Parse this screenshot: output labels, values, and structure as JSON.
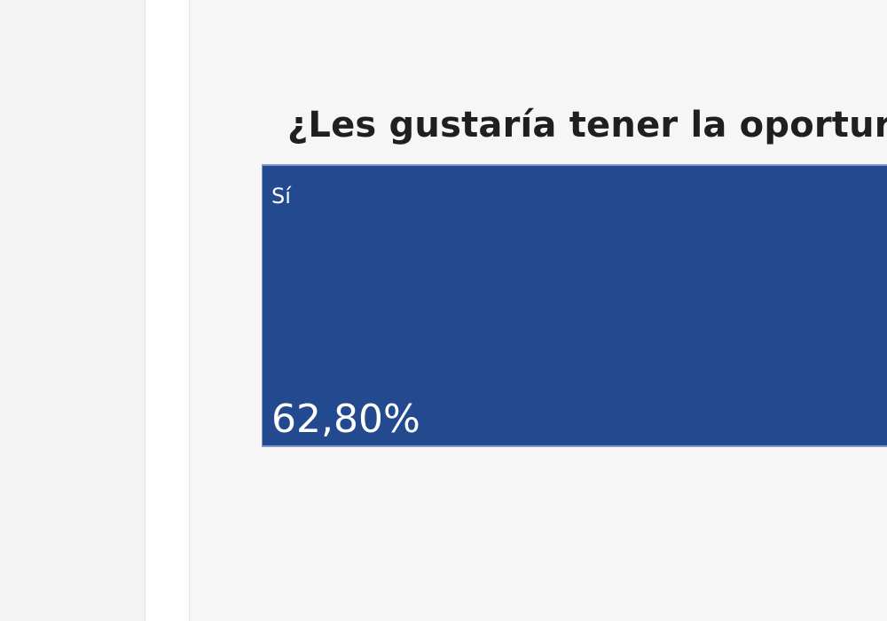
{
  "colors": {
    "primary_tile": "#234a8f"
  },
  "chart_data": {
    "type": "treemap",
    "title": "¿Les gustaría tener la oportur",
    "items": [
      {
        "label": "Sí",
        "value": 62.8,
        "value_label": "62,80%"
      }
    ]
  }
}
